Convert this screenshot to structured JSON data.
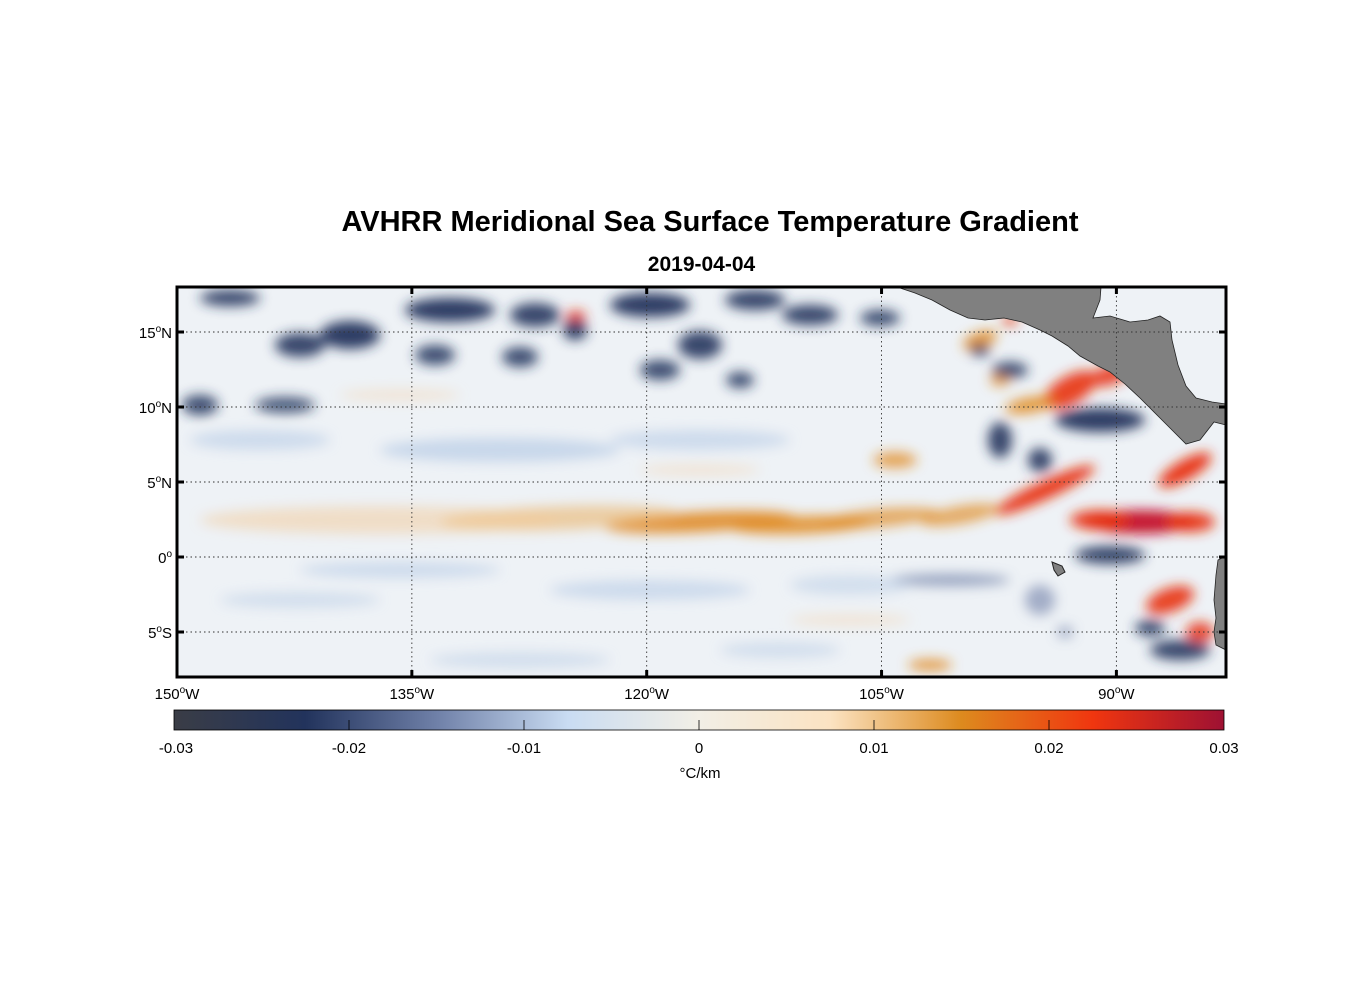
{
  "title": "AVHRR Meridional Sea Surface Temperature Gradient",
  "subtitle": "2019-04-04",
  "map": {
    "lon_range": [
      -150,
      -83
    ],
    "lat_range": [
      -8,
      18
    ],
    "lat_ticks": [
      {
        "value": 15,
        "num": "15",
        "hemi": "N"
      },
      {
        "value": 10,
        "num": "10",
        "hemi": "N"
      },
      {
        "value": 5,
        "num": "5",
        "hemi": "N"
      },
      {
        "value": 0,
        "num": "0",
        "hemi": ""
      },
      {
        "value": -5,
        "num": "5",
        "hemi": "S"
      }
    ],
    "lon_ticks": [
      {
        "value": -150,
        "num": "150",
        "hemi": "W"
      },
      {
        "value": -135,
        "num": "135",
        "hemi": "W"
      },
      {
        "value": -120,
        "num": "120",
        "hemi": "W"
      },
      {
        "value": -105,
        "num": "105",
        "hemi": "W"
      },
      {
        "value": -90,
        "num": "90",
        "hemi": "W"
      }
    ],
    "grid": true,
    "land_color": "#808080"
  },
  "colorbar": {
    "range": [
      -0.03,
      0.03
    ],
    "tick_labels": [
      "-0.03",
      "-0.02",
      "-0.01",
      "0",
      "0.01",
      "0.02",
      "0.03"
    ],
    "unit": "°C/km",
    "colors": [
      "#3a3d46",
      "#22335c",
      "#6f80a8",
      "#c9dcf2",
      "#f2efe6",
      "#fbe3c2",
      "#dd8a1e",
      "#f0360f",
      "#9e1133"
    ]
  }
}
